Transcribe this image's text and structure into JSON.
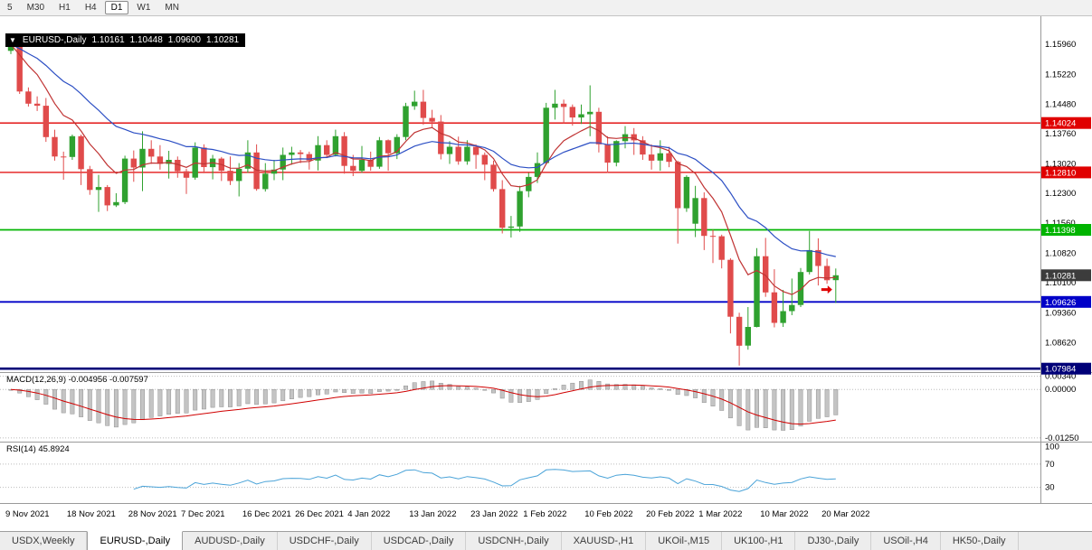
{
  "toolbar": {
    "timeframes": [
      "5",
      "M30",
      "H1",
      "H4",
      "D1",
      "W1",
      "MN"
    ],
    "selected": "D1"
  },
  "chart_header": {
    "collapse_icon": "▼",
    "symbol": "EURUSD-,Daily",
    "open": "1.10161",
    "high": "1.10448",
    "low": "1.09600",
    "close": "1.10281"
  },
  "price_axis": {
    "labels": [
      "1.15960",
      "1.15220",
      "1.14480",
      "1.13760",
      "1.13020",
      "1.12300",
      "1.11560",
      "1.10820",
      "1.10100",
      "1.09360",
      "1.08620"
    ],
    "badges": [
      {
        "text": "1.14024",
        "bg": "#e00000"
      },
      {
        "text": "1.12810",
        "bg": "#e00000"
      },
      {
        "text": "1.11398",
        "bg": "#00b400"
      },
      {
        "text": "1.10281",
        "bg": "#3c3c3c"
      },
      {
        "text": "1.09626",
        "bg": "#0000c8"
      },
      {
        "text": "1.07984",
        "bg": "#000078"
      }
    ]
  },
  "indicators": {
    "macd": {
      "label": "MACD(12,26,9) -0.004956 -0.007597",
      "values": {
        "macd": -0.004956,
        "signal": -0.007597
      },
      "axis": [
        {
          "text": "0.00340",
          "value": 0.0034
        },
        {
          "text": "0.00000",
          "value": 0
        },
        {
          "text": "-0.01250",
          "value": -0.0125
        }
      ],
      "histogram_color": "#c4c4c4",
      "signal_color": "#d00000"
    },
    "rsi": {
      "label": "RSI(14) 45.8924",
      "value": 45.8924,
      "period": 14,
      "axis": [
        {
          "text": "100",
          "value": 100
        },
        {
          "text": "70",
          "value": 70
        },
        {
          "text": "30",
          "value": 30
        }
      ],
      "levels": [
        70,
        30
      ],
      "line_color": "#4aa3d8"
    }
  },
  "date_axis": {
    "labels": [
      "9 Nov 2021",
      "18 Nov 2021",
      "28 Nov 2021",
      "7 Dec 2021",
      "16 Dec 2021",
      "26 Dec 2021",
      "4 Jan 2022",
      "13 Jan 2022",
      "23 Jan 2022",
      "1 Feb 2022",
      "10 Feb 2022",
      "20 Feb 2022",
      "1 Mar 2022",
      "10 Mar 2022",
      "20 Mar 2022"
    ],
    "indices": [
      0,
      7,
      14,
      20,
      27,
      33,
      39,
      46,
      53,
      59,
      66,
      73,
      79,
      86,
      93
    ]
  },
  "tabs": {
    "active": "EURUSD-,Daily",
    "items": [
      "USDX,Weekly",
      "EURUSD-,Daily",
      "AUDUSD-,Daily",
      "USDCHF-,Daily",
      "USDCAD-,Daily",
      "USDCNH-,Daily",
      "XAUUSD-,H1",
      "UKOil-,M15",
      "UK100-,H1",
      "DJ30-,Daily",
      "USOil-,H4",
      "HK50-,Daily"
    ]
  },
  "chart_data": {
    "type": "candlestick",
    "symbol": "EURUSD",
    "timeframe": "Daily",
    "title": "EURUSD-,Daily",
    "price_range": {
      "top": 1.1665,
      "bottom": 1.079
    },
    "up_color": "#2fa12f",
    "down_color": "#e04b4b",
    "overlays": [
      {
        "name": "ma-fast",
        "type": "ema",
        "period": 8,
        "color": "#c03434"
      },
      {
        "name": "ma-slow",
        "type": "ema",
        "period": 21,
        "color": "#2c4fc4"
      }
    ],
    "horizontal_lines": [
      {
        "price": 1.14024,
        "color": "#e00000",
        "width": 1.3
      },
      {
        "price": 1.1281,
        "color": "#e00000",
        "width": 1.3
      },
      {
        "price": 1.11398,
        "color": "#00b400",
        "width": 1.8
      },
      {
        "price": 1.09626,
        "color": "#0000c8",
        "width": 1.8
      },
      {
        "price": 1.07984,
        "color": "#000078",
        "width": 2.6
      }
    ],
    "marker": {
      "index": 94,
      "price": 1.0993,
      "color": "#e00000"
    },
    "ohlc": [
      [
        1.158,
        1.1608,
        1.1572,
        1.1596
      ],
      [
        1.1596,
        1.16,
        1.1474,
        1.148
      ],
      [
        1.148,
        1.149,
        1.1443,
        1.145
      ],
      [
        1.145,
        1.1468,
        1.1432,
        1.1445
      ],
      [
        1.1445,
        1.1464,
        1.1356,
        1.1368
      ],
      [
        1.1368,
        1.1386,
        1.131,
        1.132
      ],
      [
        1.132,
        1.1332,
        1.1263,
        1.1319
      ],
      [
        1.1319,
        1.1374,
        1.1312,
        1.137
      ],
      [
        1.137,
        1.1374,
        1.125,
        1.1289
      ],
      [
        1.1289,
        1.1297,
        1.1226,
        1.1238
      ],
      [
        1.1238,
        1.1275,
        1.1184,
        1.1245
      ],
      [
        1.1245,
        1.125,
        1.1186,
        1.12
      ],
      [
        1.12,
        1.123,
        1.1196,
        1.1208
      ],
      [
        1.1208,
        1.1322,
        1.1203,
        1.1315
      ],
      [
        1.1315,
        1.1335,
        1.1258,
        1.1293
      ],
      [
        1.1293,
        1.1382,
        1.1235,
        1.1339
      ],
      [
        1.1339,
        1.136,
        1.1302,
        1.132
      ],
      [
        1.132,
        1.1348,
        1.1288,
        1.1302
      ],
      [
        1.1302,
        1.1334,
        1.1266,
        1.1312
      ],
      [
        1.1312,
        1.132,
        1.1268,
        1.1284
      ],
      [
        1.1284,
        1.129,
        1.1228,
        1.1268
      ],
      [
        1.1268,
        1.1355,
        1.1263,
        1.1342
      ],
      [
        1.1342,
        1.135,
        1.1279,
        1.1294
      ],
      [
        1.1294,
        1.1324,
        1.1264,
        1.1315
      ],
      [
        1.1315,
        1.1319,
        1.126,
        1.1285
      ],
      [
        1.1285,
        1.132,
        1.125,
        1.126
      ],
      [
        1.126,
        1.1304,
        1.1222,
        1.129
      ],
      [
        1.129,
        1.136,
        1.128,
        1.133
      ],
      [
        1.133,
        1.135,
        1.1236,
        1.124
      ],
      [
        1.124,
        1.1304,
        1.1234,
        1.1278
      ],
      [
        1.1278,
        1.1312,
        1.1262,
        1.1288
      ],
      [
        1.1288,
        1.1342,
        1.1262,
        1.1324
      ],
      [
        1.1324,
        1.1344,
        1.13,
        1.133
      ],
      [
        1.133,
        1.1336,
        1.1304,
        1.1326
      ],
      [
        1.1326,
        1.1332,
        1.1288,
        1.131
      ],
      [
        1.131,
        1.137,
        1.1286,
        1.1348
      ],
      [
        1.1348,
        1.136,
        1.1316,
        1.1324
      ],
      [
        1.1324,
        1.1386,
        1.132,
        1.137
      ],
      [
        1.137,
        1.138,
        1.1278,
        1.1297
      ],
      [
        1.1297,
        1.1324,
        1.1272,
        1.1285
      ],
      [
        1.1285,
        1.1346,
        1.128,
        1.1312
      ],
      [
        1.1312,
        1.1332,
        1.1285,
        1.1295
      ],
      [
        1.1295,
        1.1368,
        1.129,
        1.136
      ],
      [
        1.136,
        1.1362,
        1.1285,
        1.1328
      ],
      [
        1.1328,
        1.1375,
        1.1314,
        1.1368
      ],
      [
        1.1368,
        1.1452,
        1.136,
        1.1444
      ],
      [
        1.1444,
        1.1482,
        1.1435,
        1.1455
      ],
      [
        1.1455,
        1.1484,
        1.1398,
        1.1415
      ],
      [
        1.1415,
        1.1435,
        1.139,
        1.1406
      ],
      [
        1.1406,
        1.1422,
        1.1313,
        1.1326
      ],
      [
        1.1326,
        1.1358,
        1.1302,
        1.1344
      ],
      [
        1.1344,
        1.1369,
        1.13,
        1.1308
      ],
      [
        1.1308,
        1.136,
        1.13,
        1.1344
      ],
      [
        1.1344,
        1.135,
        1.129,
        1.1324
      ],
      [
        1.1324,
        1.133,
        1.1262,
        1.13
      ],
      [
        1.13,
        1.131,
        1.1234,
        1.124
      ],
      [
        1.124,
        1.1262,
        1.1131,
        1.1145
      ],
      [
        1.1145,
        1.1174,
        1.1121,
        1.1148
      ],
      [
        1.1148,
        1.1248,
        1.1135,
        1.1235
      ],
      [
        1.1235,
        1.128,
        1.122,
        1.127
      ],
      [
        1.127,
        1.133,
        1.1255,
        1.1304
      ],
      [
        1.1304,
        1.1452,
        1.13,
        1.144
      ],
      [
        1.144,
        1.1484,
        1.1411,
        1.145
      ],
      [
        1.145,
        1.146,
        1.1402,
        1.1442
      ],
      [
        1.1442,
        1.1448,
        1.1396,
        1.1416
      ],
      [
        1.1416,
        1.1448,
        1.14,
        1.1424
      ],
      [
        1.1424,
        1.1495,
        1.137,
        1.143
      ],
      [
        1.143,
        1.144,
        1.133,
        1.135
      ],
      [
        1.135,
        1.137,
        1.128,
        1.1305
      ],
      [
        1.1305,
        1.136,
        1.1296,
        1.1358
      ],
      [
        1.1358,
        1.1395,
        1.134,
        1.1375
      ],
      [
        1.1375,
        1.139,
        1.1324,
        1.136
      ],
      [
        1.136,
        1.137,
        1.1312,
        1.1325
      ],
      [
        1.1325,
        1.135,
        1.1288,
        1.131
      ],
      [
        1.131,
        1.136,
        1.1285,
        1.1328
      ],
      [
        1.1328,
        1.1344,
        1.1294,
        1.1307
      ],
      [
        1.1307,
        1.131,
        1.1106,
        1.1193
      ],
      [
        1.1193,
        1.1274,
        1.1184,
        1.127
      ],
      [
        1.1155,
        1.1248,
        1.1122,
        1.1218
      ],
      [
        1.1218,
        1.1232,
        1.109,
        1.1125
      ],
      [
        1.1125,
        1.114,
        1.1058,
        1.1124
      ],
      [
        1.1124,
        1.1128,
        1.1045,
        1.1066
      ],
      [
        1.1066,
        1.107,
        1.0885,
        1.0926
      ],
      [
        1.0926,
        1.0936,
        1.0806,
        1.0855
      ],
      [
        1.0855,
        1.095,
        1.0845,
        1.0901
      ],
      [
        1.0901,
        1.1095,
        1.09,
        1.1075
      ],
      [
        1.1075,
        1.112,
        1.0975,
        1.0986
      ],
      [
        1.0986,
        1.1043,
        1.09,
        1.0911
      ],
      [
        1.0911,
        1.0992,
        1.0901,
        1.094
      ],
      [
        1.094,
        1.102,
        1.093,
        1.0955
      ],
      [
        1.0955,
        1.1046,
        1.095,
        1.1036
      ],
      [
        1.1036,
        1.1137,
        1.103,
        1.109
      ],
      [
        1.109,
        1.1119,
        1.1003,
        1.1051
      ],
      [
        1.1051,
        1.1069,
        1.1007,
        1.1016
      ],
      [
        1.10161,
        1.10448,
        1.096,
        1.10281
      ]
    ]
  }
}
